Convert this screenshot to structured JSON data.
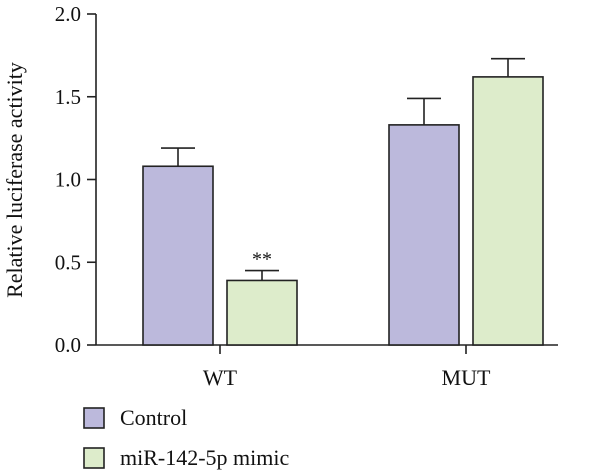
{
  "chart_data": {
    "type": "bar",
    "title": "",
    "xlabel": "",
    "ylabel": "Relative luciferase activity",
    "ylim": [
      0,
      2.0
    ],
    "yticks": [
      "0.0",
      "0.5",
      "1.0",
      "1.5",
      "2.0"
    ],
    "categories": [
      "WT",
      "MUT"
    ],
    "series": [
      {
        "name": "Control",
        "color": "#bcb9dc",
        "values": [
          1.08,
          1.33
        ],
        "errors": [
          0.11,
          0.16
        ]
      },
      {
        "name": "miR-142-5p mimic",
        "color": "#ddeccb",
        "values": [
          0.39,
          1.62
        ],
        "errors": [
          0.06,
          0.11
        ]
      }
    ],
    "annotations": [
      {
        "text": "**",
        "category": "WT",
        "series": "miR-142-5p mimic"
      }
    ],
    "legend": "bottom-left",
    "grid": false
  }
}
